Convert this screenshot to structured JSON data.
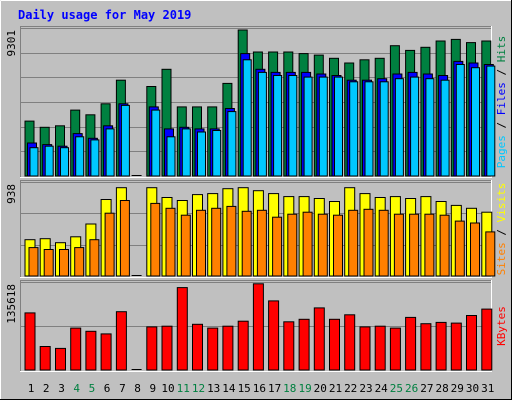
{
  "chart_data": [
    {
      "type": "bar",
      "title": "Daily usage for May 2019",
      "categories": [
        "1",
        "2",
        "3",
        "4",
        "5",
        "6",
        "7",
        "8",
        "9",
        "10",
        "11",
        "12",
        "13",
        "14",
        "15",
        "16",
        "17",
        "18",
        "19",
        "20",
        "21",
        "22",
        "23",
        "24",
        "25",
        "26",
        "27",
        "28",
        "29",
        "30",
        "31"
      ],
      "weekend_days": [
        "4",
        "5",
        "11",
        "12",
        "18",
        "19",
        "25",
        "26"
      ],
      "label_colors": {
        "weekday": "#000000",
        "weekend": "#008040"
      },
      "panels": [
        {
          "max_label": "9301",
          "ylim": [
            0,
            9301
          ],
          "legend": [
            {
              "text": "Pages",
              "color": "#00c8ff"
            },
            {
              "text": " / ",
              "color": "#000000"
            },
            {
              "text": "Files",
              "color": "#0000ff"
            },
            {
              "text": " / ",
              "color": "#000000"
            },
            {
              "text": "Hits",
              "color": "#008040"
            }
          ],
          "series": [
            {
              "name": "Hits",
              "color": "#008040",
              "values": [
                3500,
                3100,
                3200,
                4200,
                3900,
                4600,
                6100,
                0,
                5700,
                6800,
                4400,
                4400,
                4400,
                5900,
                9301,
                7900,
                7900,
                7900,
                7800,
                7700,
                7500,
                7200,
                7400,
                7500,
                8300,
                8000,
                8200,
                8600,
                8700,
                8500,
                8600
              ]
            },
            {
              "name": "Files",
              "color": "#0000ff",
              "values": [
                2100,
                2000,
                1900,
                2700,
                2400,
                3200,
                4600,
                0,
                4400,
                3000,
                3100,
                3000,
                3000,
                4300,
                7800,
                6800,
                6600,
                6600,
                6600,
                6500,
                6400,
                6100,
                6100,
                6200,
                6500,
                6600,
                6500,
                6400,
                7300,
                7200,
                7100
              ]
            },
            {
              "name": "Pages",
              "color": "#00c8ff",
              "values": [
                1800,
                1900,
                1800,
                2500,
                2300,
                3000,
                4500,
                0,
                4200,
                2500,
                3000,
                2800,
                2900,
                4100,
                7400,
                6600,
                6400,
                6400,
                6300,
                6300,
                6300,
                6000,
                6000,
                6000,
                6200,
                6300,
                6200,
                6100,
                7100,
                6900,
                7000
              ]
            }
          ]
        },
        {
          "max_label": "938",
          "ylim": [
            0,
            938
          ],
          "legend": [
            {
              "text": "Sites",
              "color": "#ff8000"
            },
            {
              "text": " / ",
              "color": "#000000"
            },
            {
              "text": "Visits",
              "color": "#ffff00"
            }
          ],
          "series": [
            {
              "name": "Visits",
              "color": "#ffff00",
              "values": [
                370,
                380,
                340,
                400,
                530,
                780,
                900,
                0,
                900,
                800,
                770,
                830,
                840,
                890,
                900,
                870,
                840,
                810,
                810,
                790,
                760,
                900,
                840,
                800,
                810,
                790,
                810,
                760,
                720,
                690,
                650
              ]
            },
            {
              "name": "Sites",
              "color": "#ff8000",
              "values": [
                290,
                270,
                270,
                290,
                370,
                640,
                770,
                0,
                740,
                690,
                620,
                670,
                690,
                710,
                660,
                670,
                600,
                630,
                650,
                630,
                620,
                670,
                680,
                670,
                630,
                630,
                630,
                620,
                560,
                540,
                450
              ]
            }
          ]
        },
        {
          "max_label": "135618",
          "ylim": [
            0,
            135618
          ],
          "legend": [
            {
              "text": "KBytes",
              "color": "#ff0000"
            }
          ],
          "series": [
            {
              "name": "KBytes",
              "color": "#ff0000",
              "values": [
                90000,
                37000,
                34000,
                66000,
                61000,
                57000,
                92000,
                0,
                68000,
                69000,
                130000,
                72000,
                66000,
                69000,
                77000,
                136000,
                109000,
                76000,
                80000,
                98000,
                80000,
                87000,
                68000,
                69000,
                66000,
                83000,
                73000,
                75000,
                74000,
                86000,
                96000
              ]
            }
          ]
        }
      ]
    }
  ],
  "colors": {
    "frame_bg": "#c0c0c0",
    "plot_bg": "#c0c0c0",
    "grid": "#808080",
    "title_color": "#0000ff",
    "label_color": "#000000"
  }
}
